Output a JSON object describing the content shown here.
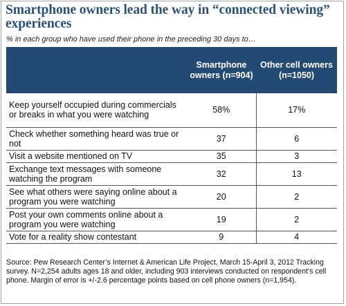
{
  "title": "Smartphone owners lead the way in “connected viewing” experiences",
  "subtitle": "% in each group who have used their phone in the preceding 30 days to…",
  "chart_data": {
    "type": "table",
    "columns": [
      "",
      "Smartphone owners (n=904)",
      "Other cell owners (n=1050)"
    ],
    "rows": [
      [
        "Keep yourself occupied during commercials or breaks in what you were watching",
        "58%",
        "17%"
      ],
      [
        "Check whether something heard was true or not",
        "37",
        "6"
      ],
      [
        "Visit a website mentioned on TV",
        "35",
        "3"
      ],
      [
        "Exchange text messages with someone watching the program",
        "32",
        "13"
      ],
      [
        "See what others were saying online about a program you were watching",
        "20",
        "2"
      ],
      [
        "Post your own comments online about a program you were watching",
        "19",
        "2"
      ],
      [
        "Vote for a reality show contestant",
        "9",
        "4"
      ]
    ]
  },
  "source": "Source: Pew Research Center’s Internet & American Life Project, March 15-April 3, 2012 Tracking survey. N=2,254 adults ages 18 and older, including 903 interviews conducted on respondent’s cell phone. Margin of error is +/-2.6 percentage points based on cell phone owners (n=1,954)."
}
